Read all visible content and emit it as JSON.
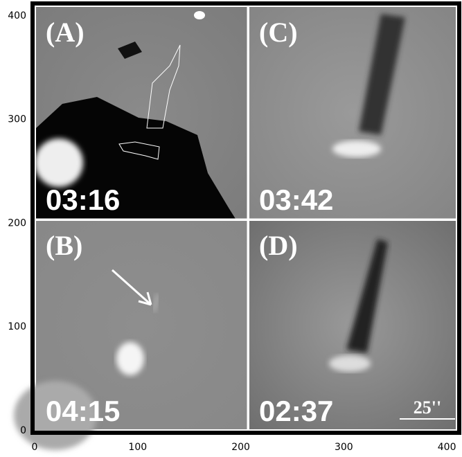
{
  "axes": {
    "xlim": [
      0,
      410
    ],
    "ylim": [
      0,
      410
    ],
    "xticks": [
      0,
      100,
      200,
      300,
      400
    ],
    "yticks": [
      0,
      100,
      200,
      300,
      400
    ]
  },
  "panels": [
    {
      "label": "(A)",
      "time": "03:16"
    },
    {
      "label": "(C)",
      "time": "03:42"
    },
    {
      "label": "(B)",
      "time": "04:15"
    },
    {
      "label": "(D)",
      "time": "02:37"
    }
  ],
  "scale_bar": "25''"
}
